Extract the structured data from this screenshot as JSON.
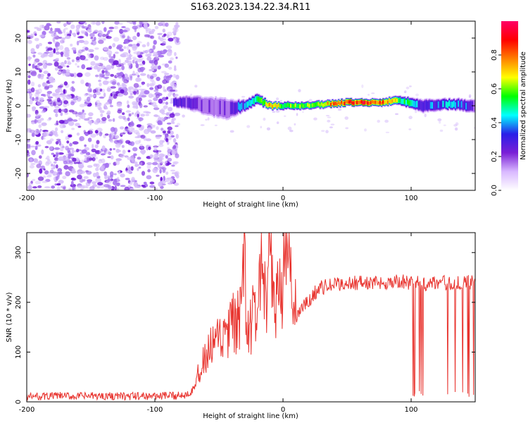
{
  "title": "S163.2023.134.22.34.R11",
  "chart_data": [
    {
      "type": "heatmap",
      "xlabel": "Height of straight line (km)",
      "ylabel": "Frequency (Hz)",
      "xlim": [
        -200,
        150
      ],
      "ylim": [
        -25,
        25
      ],
      "x_ticks": [
        "-200",
        "-100",
        "0",
        "100"
      ],
      "x_tick_values": [
        -200,
        -100,
        0,
        100
      ],
      "y_ticks": [
        "-20",
        "-10",
        "0",
        "10",
        "20"
      ],
      "y_tick_values": [
        -20,
        -10,
        0,
        10,
        20
      ],
      "colorbar": {
        "label": "Normalized spectral amplitude",
        "range": [
          0,
          1
        ],
        "ticks": [
          "0.0",
          "0.2",
          "0.4",
          "0.6",
          "0.8"
        ],
        "tick_values": [
          0,
          0.2,
          0.4,
          0.6,
          0.8
        ],
        "colormap": [
          "#ffffff",
          "#d9b8ff",
          "#7a1fd6",
          "#2a1ee8",
          "#00ffff",
          "#00ff00",
          "#ffff00",
          "#ff8000",
          "#ff0000",
          "#ff0066"
        ]
      },
      "noise_region_x": [
        -200,
        -85
      ],
      "signal_band": [
        {
          "x": -85,
          "freq": 1,
          "amplitude": 0.35,
          "spread": 1.2
        },
        {
          "x": -75,
          "freq": 1,
          "amplitude": 0.3,
          "spread": 1.8
        },
        {
          "x": -60,
          "freq": 0,
          "amplitude": 0.25,
          "spread": 2.5
        },
        {
          "x": -45,
          "freq": -1,
          "amplitude": 0.25,
          "spread": 3
        },
        {
          "x": -30,
          "freq": 0,
          "amplitude": 0.4,
          "spread": 1.5
        },
        {
          "x": -20,
          "freq": 2,
          "amplitude": 0.5,
          "spread": 1.5
        },
        {
          "x": -10,
          "freq": 0,
          "amplitude": 0.7,
          "spread": 1
        },
        {
          "x": 0,
          "freq": 0,
          "amplitude": 0.6,
          "spread": 1
        },
        {
          "x": 20,
          "freq": 0,
          "amplitude": 0.6,
          "spread": 1
        },
        {
          "x": 50,
          "freq": 1,
          "amplitude": 0.85,
          "spread": 1
        },
        {
          "x": 75,
          "freq": 1,
          "amplitude": 0.85,
          "spread": 1
        },
        {
          "x": 90,
          "freq": 1.5,
          "amplitude": 0.6,
          "spread": 1.2
        },
        {
          "x": 110,
          "freq": 0,
          "amplitude": 0.35,
          "spread": 1.8
        },
        {
          "x": 130,
          "freq": 0.5,
          "amplitude": 0.45,
          "spread": 1.5
        },
        {
          "x": 150,
          "freq": 0,
          "amplitude": 0.3,
          "spread": 1.8
        }
      ]
    },
    {
      "type": "line",
      "xlabel": "Height of straight line (km)",
      "ylabel": "SNR (10 * v/v)",
      "xlim": [
        -200,
        150
      ],
      "ylim": [
        0,
        340
      ],
      "x_ticks": [
        "-200",
        "-100",
        "0",
        "100"
      ],
      "x_tick_values": [
        -200,
        -100,
        0,
        100
      ],
      "y_ticks": [
        "0",
        "100",
        "200",
        "300"
      ],
      "y_tick_values": [
        0,
        100,
        200,
        300
      ],
      "color": "#e8332e",
      "series": [
        {
          "x": [
            -200,
            -180,
            -160,
            -140,
            -120,
            -100,
            -85,
            -75,
            -70,
            -65,
            -60,
            -55,
            -50,
            -45,
            -40,
            -35,
            -32,
            -30,
            -28,
            -25,
            -20,
            -17,
            -15,
            -12,
            -10,
            -8,
            -5,
            -2,
            0,
            3,
            5,
            8,
            10,
            15,
            20,
            25,
            30,
            40,
            50,
            60,
            70,
            80,
            90,
            100,
            110,
            120,
            130,
            140,
            150
          ],
          "values": [
            10,
            12,
            11,
            12,
            11,
            12,
            12,
            15,
            30,
            60,
            90,
            110,
            120,
            130,
            150,
            160,
            170,
            320,
            130,
            160,
            180,
            300,
            200,
            190,
            340,
            210,
            220,
            240,
            250,
            260,
            300,
            180,
            170,
            190,
            200,
            220,
            230,
            235,
            238,
            240,
            238,
            240,
            242,
            240,
            238,
            240,
            238,
            240,
            240
          ]
        }
      ]
    }
  ]
}
